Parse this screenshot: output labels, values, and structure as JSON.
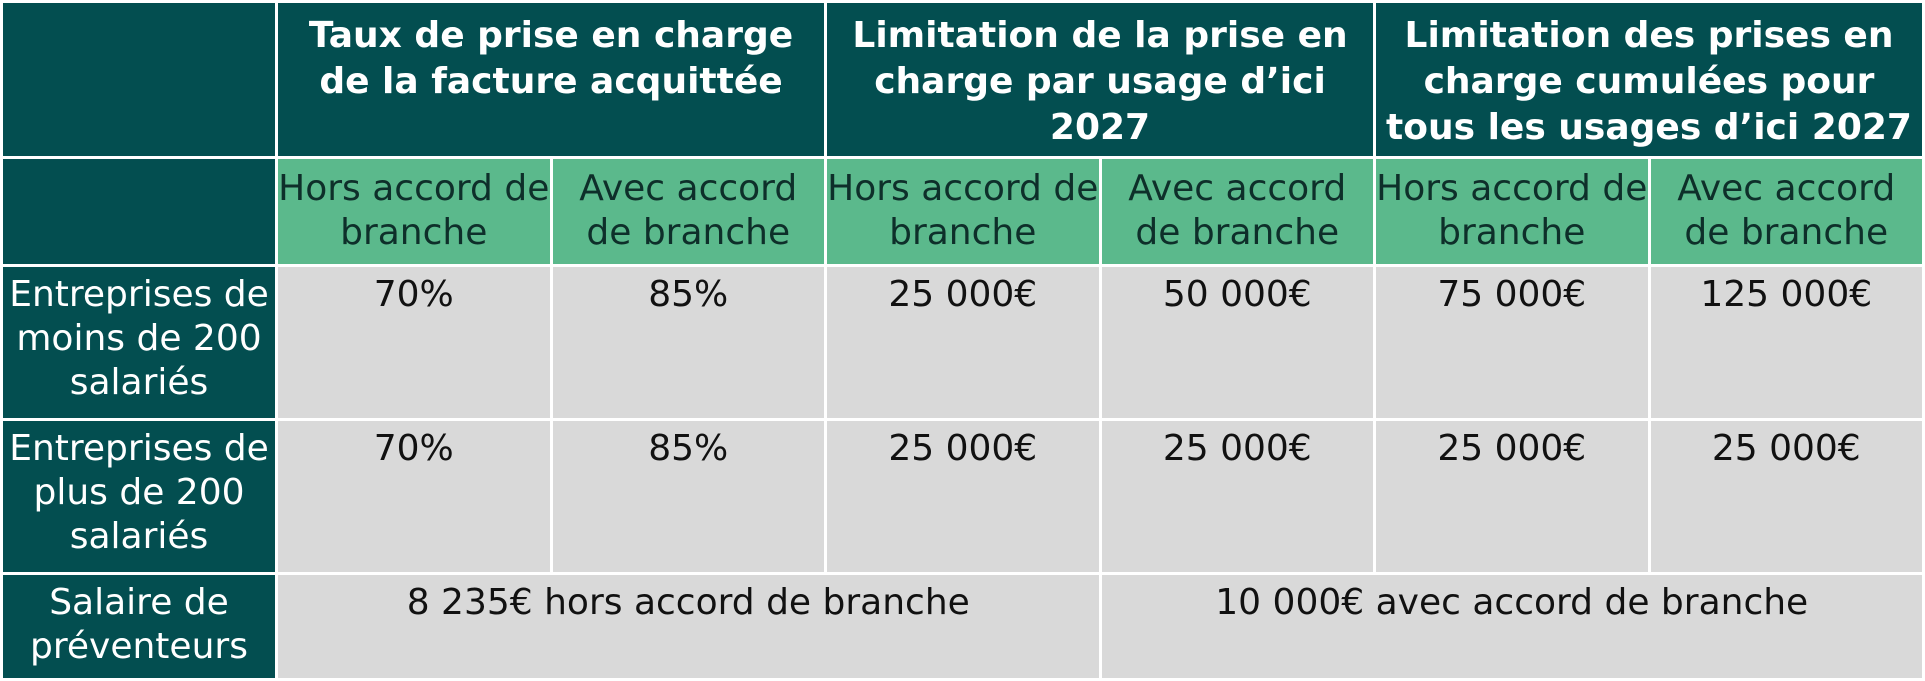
{
  "header": {
    "group1": "Taux de prise en charge de la facture acquittée",
    "group2": "Limitation de la prise en charge par usage d’ici 2027",
    "group3": "Limitation des prises en charge cumulées pour tous les usages d’ici 2027"
  },
  "subheader": {
    "hors": "Hors accord de branche",
    "avec": "Avec accord de branche"
  },
  "rows": [
    {
      "label": "Entreprises de moins de 200 salariés",
      "values": [
        "70%",
        "85%",
        "25 000€",
        "50 000€",
        "75 000€",
        "125 000€"
      ]
    },
    {
      "label": "Entreprises de plus de 200 salariés",
      "values": [
        "70%",
        "85%",
        "25 000€",
        "25 000€",
        "25 000€",
        "25 000€"
      ]
    }
  ],
  "salary_row": {
    "label": "Salaire de préventeurs",
    "hors": "8 235€ hors accord de branche",
    "avec": "10 000€ avec accord de branche"
  },
  "colors": {
    "dark_teal": "#034e50",
    "green": "#5bb98c",
    "grey": "#d9d9d9"
  }
}
